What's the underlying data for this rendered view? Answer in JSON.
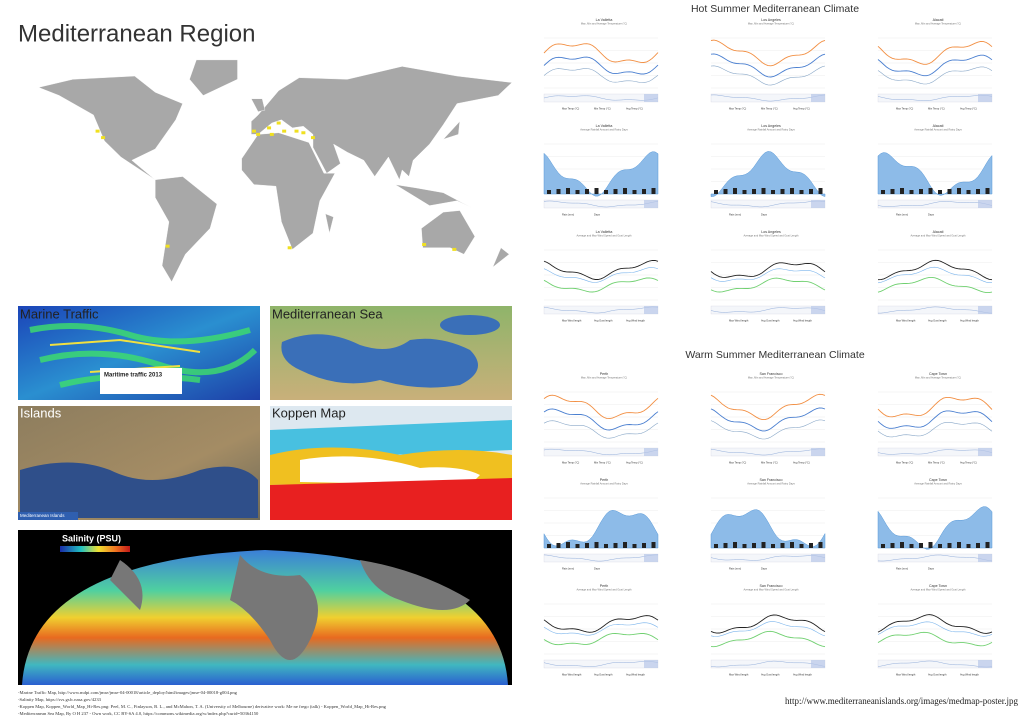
{
  "header": {
    "title": "Mediterranean Region"
  },
  "panels": [
    {
      "label": "Marine Traffic"
    },
    {
      "label": "Mediterranean Sea"
    },
    {
      "label": "Islands"
    },
    {
      "label": "Koppen Map"
    }
  ],
  "marine_legend": "Maritime traffic 2013",
  "islands_caption": "Mediterranean Islands",
  "salinity": {
    "title": "Salinity (PSU)"
  },
  "credits": [
    "-Marine Traffic Map, http://www.mdpi.com/jmse/jmse-04-00018/article_deploy/html/images/jmse-04-00018-g004.png",
    "-Salinity Map, https://svs.gsfc.nasa.gov/4233",
    "-Koppen Map, Koppen_World_Map_Hi-Res.png: Peel, M. C., Finlayson, B. L., and McMahon, T. A. (University of Melbourne) derivative work: Me ne frego (talk) - Koppen_World_Map_Hi-Res.png",
    "-Mediterranean Sea Map, By O H 237 - Own work, CC BY-SA 4.0, https://commons.wikimedia.org/w/index.php?curid=50364150"
  ],
  "sections": [
    {
      "title": "Hot Summer Mediterranean Climate",
      "cities": [
        "La Valletta",
        "Los Angeles",
        "Alacati"
      ]
    },
    {
      "title": "Warm Summer Mediterranean Climate",
      "cities": [
        "Perth",
        "San Francisco",
        "Cape Town"
      ]
    }
  ],
  "chart_rows": [
    {
      "subtitle": "Max, Min and Average Temperature (°C)",
      "legend": [
        "Max Temp (°C)",
        "Min Temp (°C)",
        "Avg Temp (°C)"
      ]
    },
    {
      "subtitle": "Average Rainfall Amount and Rainy Days",
      "legend": [
        "Rain (mm)",
        "Days"
      ]
    },
    {
      "subtitle": "Average and Max Wind Speed and Gust Length",
      "legend": [
        "Max Wind length",
        "Avg Gust length",
        "Avg Wind length"
      ]
    }
  ],
  "footer_url": "http://www.mediterraneanislands.org/images/medmap-poster.jpg"
}
